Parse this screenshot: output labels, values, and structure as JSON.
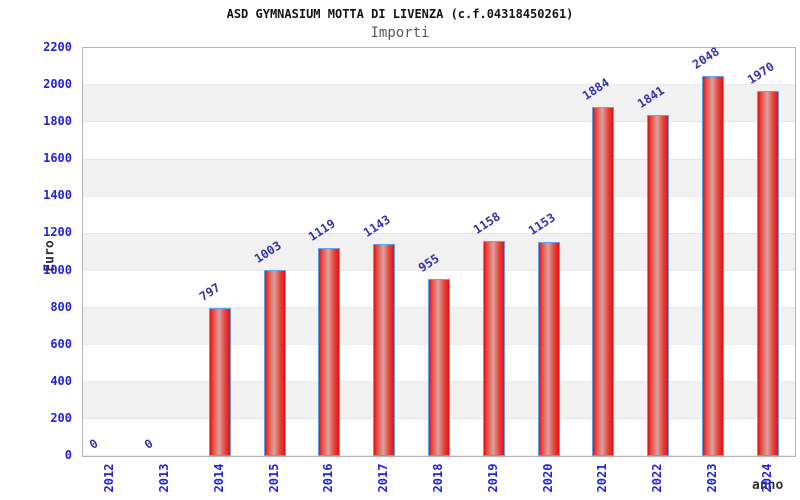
{
  "chart_data": {
    "type": "bar",
    "title": "ASD GYMNASIUM MOTTA DI LIVENZA (c.f.04318450261)",
    "subtitle": "Importi",
    "xlabel": "anno",
    "ylabel": "Euro",
    "categories": [
      "2012",
      "2013",
      "2014",
      "2015",
      "2016",
      "2017",
      "2018",
      "2019",
      "2020",
      "2021",
      "2022",
      "2023",
      "2024"
    ],
    "values": [
      0,
      0,
      797,
      1003,
      1119,
      1143,
      955,
      1158,
      1153,
      1884,
      1841,
      2048,
      1970
    ],
    "yticks": [
      0,
      200,
      400,
      600,
      800,
      1000,
      1200,
      1400,
      1600,
      1800,
      2000,
      2200
    ],
    "ylim": [
      0,
      2200
    ],
    "grid": "alternating horizontal bands every 200",
    "legend_position": "none",
    "value_labels_rotation_deg": -33,
    "x_tick_rotation_deg": -90,
    "colors": {
      "bar_fill": "#e31111",
      "bar_center_highlight": "#d9a29e",
      "bar_border": "#63a0f0",
      "tick_label": "#2222dd",
      "value_label": "#3333b2",
      "band_gray": "#f1f1f1",
      "axis_label": "#333333",
      "subtitle": "#595959",
      "title": "#141414"
    }
  }
}
